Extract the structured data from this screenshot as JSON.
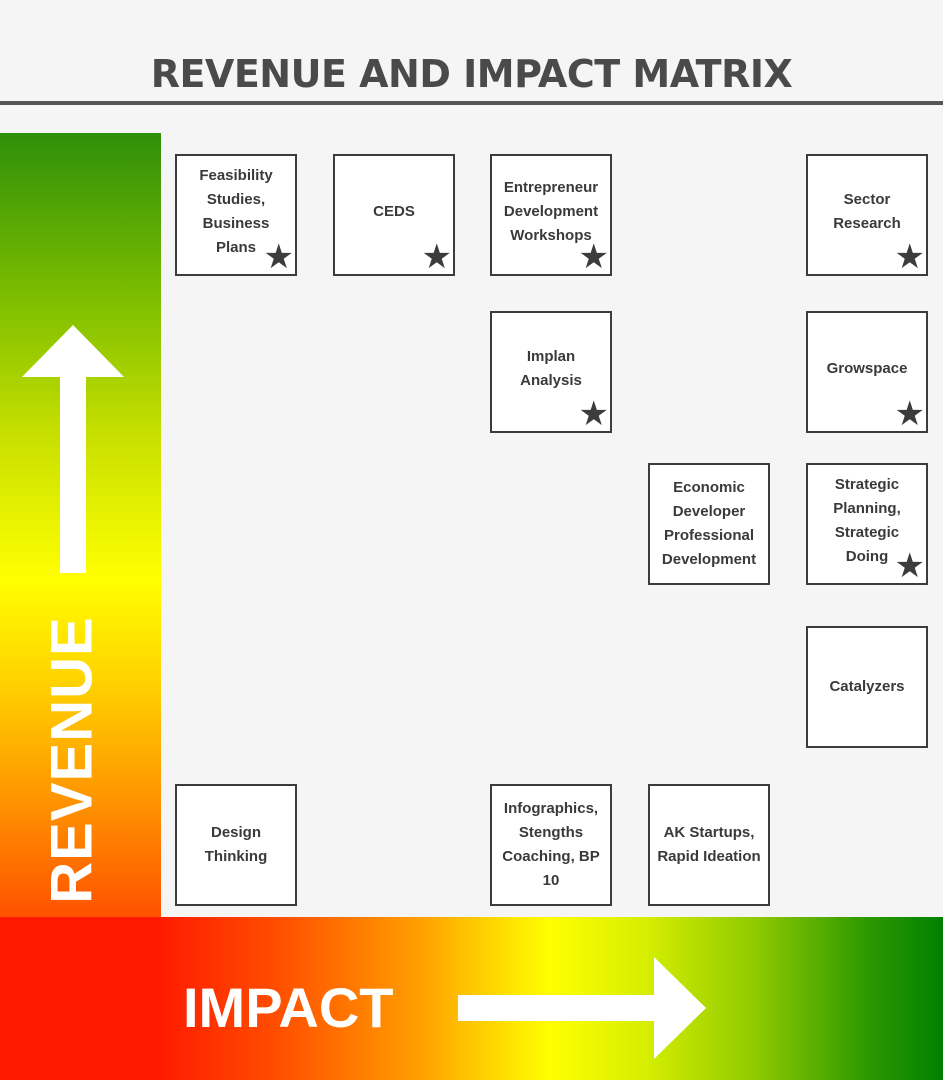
{
  "title": "REVENUE AND IMPACT MATRIX",
  "axes": {
    "vertical_label": "REVENUE",
    "horizontal_label": "IMPACT"
  },
  "star_icon": "★",
  "items": {
    "feasibility": {
      "label": "Feasibility Studies, Business Plans",
      "starred": true
    },
    "ceds": {
      "label": "CEDS",
      "starred": true
    },
    "entrepreneur": {
      "label": "Entrepreneur Development Workshops",
      "starred": true
    },
    "sector": {
      "label": "Sector Research",
      "starred": true
    },
    "implan": {
      "label": "Implan Analysis",
      "starred": true
    },
    "growspace": {
      "label": "Growspace",
      "starred": true
    },
    "economic": {
      "label": "Economic Developer Professional Development",
      "starred": false
    },
    "strategic": {
      "label": "Strategic Planning, Strategic Doing",
      "starred": true
    },
    "catalyzers": {
      "label": "Catalyzers",
      "starred": false
    },
    "design": {
      "label": "Design Thinking",
      "starred": false
    },
    "infographics": {
      "label": "Infographics, Stengths Coaching, BP 10",
      "starred": false
    },
    "akstartups": {
      "label": "AK Startups, Rapid Ideation",
      "starred": false
    }
  },
  "colors": {
    "revenue_top": "#2f8f0a",
    "revenue_bottom": "#ff1a00",
    "impact_left": "#ff1a00",
    "impact_right": "#008000",
    "box_border": "#3c3c3c",
    "title_text": "#4a4a4a"
  }
}
